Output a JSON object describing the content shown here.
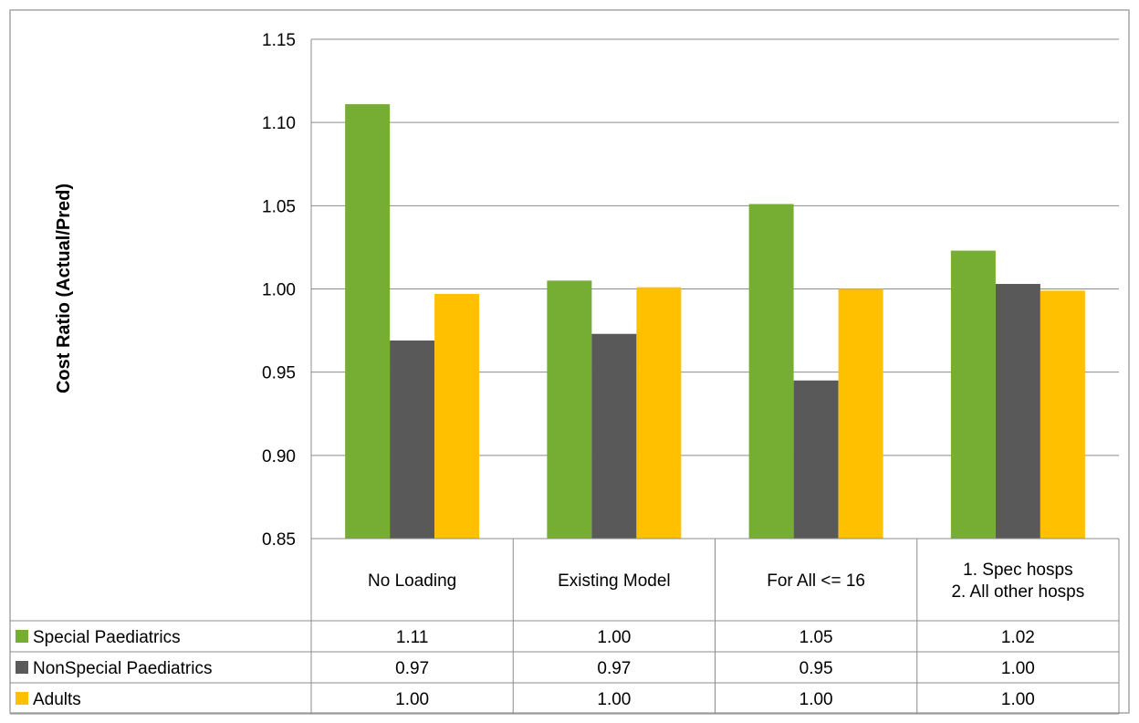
{
  "chart_data": {
    "type": "bar",
    "ylabel": "Cost Ratio (Actual/Pred)",
    "ylim": [
      0.85,
      1.15
    ],
    "yticks": [
      "0.85",
      "0.90",
      "0.95",
      "1.00",
      "1.05",
      "1.10",
      "1.15"
    ],
    "ytick_values": [
      0.85,
      0.9,
      0.95,
      1.0,
      1.05,
      1.1,
      1.15
    ],
    "grid": true,
    "legend": "data-table-rows",
    "categories": [
      [
        "No Loading"
      ],
      [
        "Existing Model"
      ],
      [
        "For All <= 16"
      ],
      [
        "1. Spec hosps",
        "2. All other hosps"
      ]
    ],
    "series": [
      {
        "name": "Special Paediatrics",
        "color": "#76ae33",
        "values": [
          1.111,
          1.005,
          1.051,
          1.023
        ],
        "labels": [
          "1.11",
          "1.00",
          "1.05",
          "1.02"
        ]
      },
      {
        "name": "NonSpecial Paediatrics",
        "color": "#595959",
        "values": [
          0.969,
          0.973,
          0.945,
          1.003
        ],
        "labels": [
          "0.97",
          "0.97",
          "0.95",
          "1.00"
        ]
      },
      {
        "name": "Adults",
        "color": "#ffc000",
        "values": [
          0.997,
          1.001,
          1.0,
          0.999
        ],
        "labels": [
          "1.00",
          "1.00",
          "1.00",
          "1.00"
        ]
      }
    ]
  }
}
